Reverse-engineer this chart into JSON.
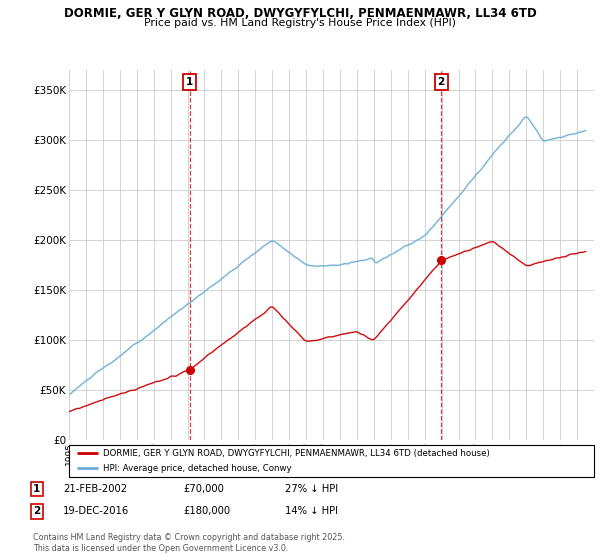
{
  "title1": "DORMIE, GER Y GLYN ROAD, DWYGYFYLCHI, PENMAENMAWR, LL34 6TD",
  "title2": "Price paid vs. HM Land Registry's House Price Index (HPI)",
  "ylabel_ticks": [
    "£0",
    "£50K",
    "£100K",
    "£150K",
    "£200K",
    "£250K",
    "£300K",
    "£350K"
  ],
  "ytick_vals": [
    0,
    50000,
    100000,
    150000,
    200000,
    250000,
    300000,
    350000
  ],
  "ylim": [
    0,
    370000
  ],
  "sale1_date": 2002.13,
  "sale1_price": 70000,
  "sale2_date": 2016.97,
  "sale2_price": 180000,
  "hpi_color": "#6aaed6",
  "price_color": "#cc0000",
  "legend_label1": "DORMIE, GER Y GLYN ROAD, DWYGYFYLCHI, PENMAENMAWR, LL34 6TD (detached house)",
  "legend_label2": "HPI: Average price, detached house, Conwy",
  "footnote": "Contains HM Land Registry data © Crown copyright and database right 2025.\nThis data is licensed under the Open Government Licence v3.0.",
  "xmin": 1995,
  "xmax": 2026
}
